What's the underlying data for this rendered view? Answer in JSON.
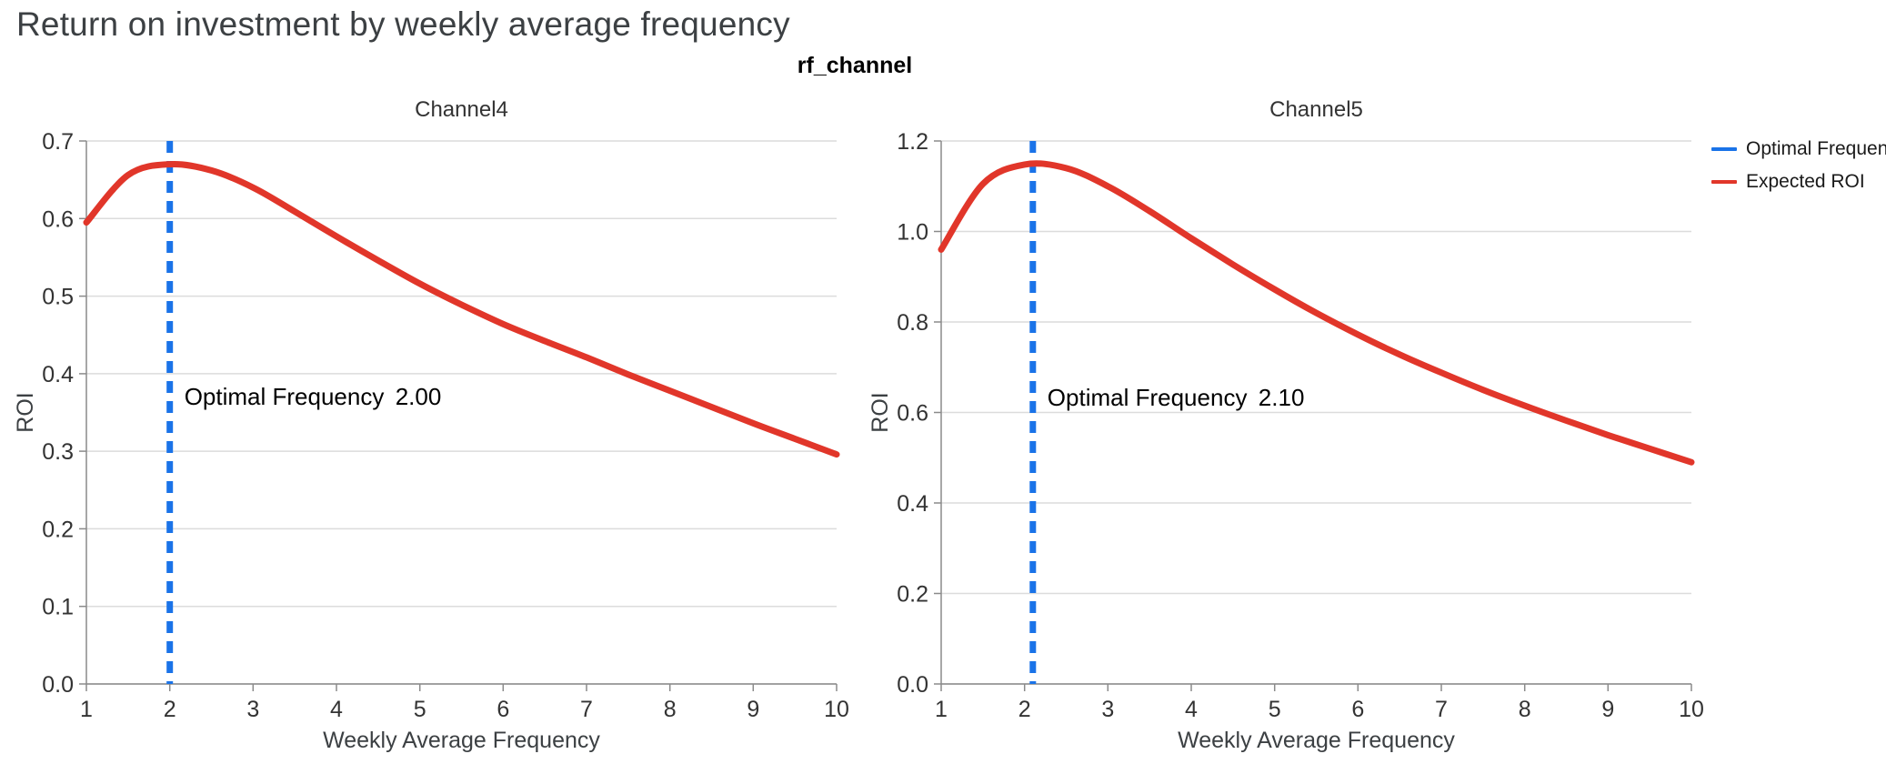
{
  "page": {
    "title": "Return on investment by weekly average frequency",
    "figure_title": "rf_channel"
  },
  "colors": {
    "blue": "#1A73E8",
    "red": "#E1362A",
    "grid": "#dcdcdc",
    "axis": "#8a8a8a",
    "tick_text": "#333333",
    "axis_title_text": "#3c4043",
    "annotation_text": "#000000"
  },
  "legend": {
    "position": "top-right-outside",
    "items": [
      {
        "label": "Optimal Frequency",
        "color": "#1A73E8"
      },
      {
        "label": "Expected ROI",
        "color": "#E1362A"
      }
    ]
  },
  "chart_data": [
    {
      "type": "line",
      "title": "Channel4",
      "xlabel": "Weekly Average Frequency",
      "ylabel": "ROI",
      "xlim": [
        1,
        10
      ],
      "ylim": [
        0,
        0.7
      ],
      "xticks": [
        1,
        2,
        3,
        4,
        5,
        6,
        7,
        8,
        9,
        10
      ],
      "yticks": [
        0.0,
        0.1,
        0.2,
        0.3,
        0.4,
        0.5,
        0.6,
        0.7
      ],
      "grid": "horizontal",
      "optimal_frequency": 2.0,
      "annotation": {
        "label": "Optimal Frequency",
        "value": "2.00",
        "y": 0.36
      },
      "series": [
        {
          "name": "Expected ROI",
          "x": [
            1,
            1.5,
            2,
            2.5,
            3,
            3.5,
            4,
            4.5,
            5,
            5.5,
            6,
            6.5,
            7,
            7.5,
            8,
            8.5,
            9,
            9.5,
            10
          ],
          "y": [
            0.595,
            0.656,
            0.67,
            0.662,
            0.64,
            0.609,
            0.577,
            0.546,
            0.516,
            0.489,
            0.464,
            0.442,
            0.421,
            0.399,
            0.378,
            0.357,
            0.336,
            0.316,
            0.296
          ]
        }
      ]
    },
    {
      "type": "line",
      "title": "Channel5",
      "xlabel": "Weekly Average Frequency",
      "ylabel": "ROI",
      "xlim": [
        1,
        10
      ],
      "ylim": [
        0,
        1.2
      ],
      "xticks": [
        1,
        2,
        3,
        4,
        5,
        6,
        7,
        8,
        9,
        10
      ],
      "yticks": [
        0.0,
        0.2,
        0.4,
        0.6,
        0.8,
        1.0,
        1.2
      ],
      "grid": "horizontal",
      "optimal_frequency": 2.1,
      "annotation": {
        "label": "Optimal Frequency",
        "value": "2.10",
        "y": 0.615
      },
      "series": [
        {
          "name": "Expected ROI",
          "x": [
            1,
            1.5,
            2,
            2.5,
            3,
            3.5,
            4,
            4.5,
            5,
            5.5,
            6,
            6.5,
            7,
            7.5,
            8,
            8.5,
            9,
            9.5,
            10
          ],
          "y": [
            0.96,
            1.105,
            1.148,
            1.14,
            1.1,
            1.045,
            0.985,
            0.927,
            0.872,
            0.82,
            0.772,
            0.728,
            0.688,
            0.65,
            0.615,
            0.582,
            0.55,
            0.52,
            0.49
          ]
        }
      ]
    }
  ]
}
